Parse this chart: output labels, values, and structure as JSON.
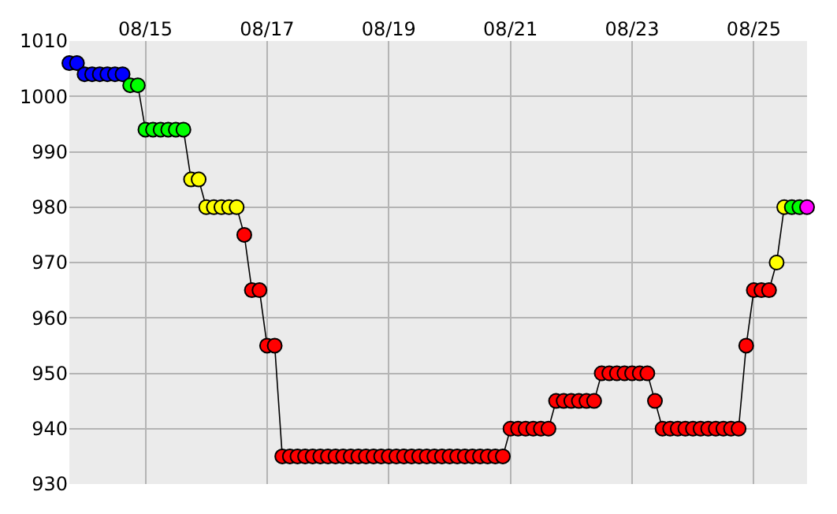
{
  "chart_data": {
    "type": "line",
    "x": [
      "--08-13T18:00",
      "--08-13T21:00",
      "--08-14T00:00",
      "--08-14T03:00",
      "--08-14T06:00",
      "--08-14T09:00",
      "--08-14T12:00",
      "--08-14T15:00",
      "--08-14T18:00",
      "--08-14T21:00",
      "--08-15T00:00",
      "--08-15T03:00",
      "--08-15T06:00",
      "--08-15T09:00",
      "--08-15T12:00",
      "--08-15T15:00",
      "--08-15T18:00",
      "--08-15T21:00",
      "--08-16T00:00",
      "--08-16T03:00",
      "--08-16T06:00",
      "--08-16T09:00",
      "--08-16T12:00",
      "--08-16T15:00",
      "--08-16T18:00",
      "--08-16T21:00",
      "--08-17T00:00",
      "--08-17T03:00",
      "--08-17T06:00",
      "--08-17T09:00",
      "--08-17T12:00",
      "--08-17T15:00",
      "--08-17T18:00",
      "--08-17T21:00",
      "--08-18T00:00",
      "--08-18T03:00",
      "--08-18T06:00",
      "--08-18T09:00",
      "--08-18T12:00",
      "--08-18T15:00",
      "--08-18T18:00",
      "--08-18T21:00",
      "--08-19T00:00",
      "--08-19T03:00",
      "--08-19T06:00",
      "--08-19T09:00",
      "--08-19T12:00",
      "--08-19T15:00",
      "--08-19T18:00",
      "--08-19T21:00",
      "--08-20T00:00",
      "--08-20T03:00",
      "--08-20T06:00",
      "--08-20T09:00",
      "--08-20T12:00",
      "--08-20T15:00",
      "--08-20T18:00",
      "--08-20T21:00",
      "--08-21T00:00",
      "--08-21T03:00",
      "--08-21T06:00",
      "--08-21T09:00",
      "--08-21T12:00",
      "--08-21T15:00",
      "--08-21T18:00",
      "--08-21T21:00",
      "--08-22T00:00",
      "--08-22T03:00",
      "--08-22T06:00",
      "--08-22T09:00",
      "--08-22T12:00",
      "--08-22T15:00",
      "--08-22T18:00",
      "--08-22T21:00",
      "--08-23T00:00",
      "--08-23T03:00",
      "--08-23T06:00",
      "--08-23T09:00",
      "--08-23T12:00",
      "--08-23T15:00",
      "--08-23T18:00",
      "--08-23T21:00",
      "--08-24T00:00",
      "--08-24T03:00",
      "--08-24T06:00",
      "--08-24T09:00",
      "--08-24T12:00",
      "--08-24T15:00",
      "--08-24T18:00",
      "--08-24T21:00",
      "--08-25T00:00",
      "--08-25T03:00",
      "--08-25T06:00",
      "--08-25T09:00",
      "--08-25T12:00",
      "--08-25T15:00",
      "--08-25T18:00",
      "--08-25T21:00"
    ],
    "series": [
      {
        "color": "#000000",
        "values": [
          1006,
          1006,
          1004,
          1004,
          1004,
          1004,
          1004,
          1004,
          1002,
          1002,
          994,
          994,
          994,
          994,
          994,
          994,
          985,
          985,
          980,
          980,
          980,
          980,
          980,
          975,
          965,
          965,
          955,
          955,
          935,
          935,
          935,
          935,
          935,
          935,
          935,
          935,
          935,
          935,
          935,
          935,
          935,
          935,
          935,
          935,
          935,
          935,
          935,
          935,
          935,
          935,
          935,
          935,
          935,
          935,
          935,
          935,
          935,
          935,
          940,
          940,
          940,
          940,
          940,
          940,
          945,
          945,
          945,
          945,
          945,
          945,
          950,
          950,
          950,
          950,
          950,
          950,
          950,
          945,
          940,
          940,
          940,
          940,
          940,
          940,
          940,
          940,
          940,
          940,
          940,
          955,
          965,
          965,
          965,
          970,
          980,
          980,
          980,
          980
        ],
        "colors": [
          "#0000ff",
          "#0000ff",
          "#0000ff",
          "#0000ff",
          "#0000ff",
          "#0000ff",
          "#0000ff",
          "#0000ff",
          "#00ff00",
          "#00ff00",
          "#00ff00",
          "#00ff00",
          "#00ff00",
          "#00ff00",
          "#00ff00",
          "#00ff00",
          "#ffff00",
          "#ffff00",
          "#ffff00",
          "#ffff00",
          "#ffff00",
          "#ffff00",
          "#ffff00",
          "#ff0000",
          "#ff0000",
          "#ff0000",
          "#ff0000",
          "#ff0000",
          "#ff0000",
          "#ff0000",
          "#ff0000",
          "#ff0000",
          "#ff0000",
          "#ff0000",
          "#ff0000",
          "#ff0000",
          "#ff0000",
          "#ff0000",
          "#ff0000",
          "#ff0000",
          "#ff0000",
          "#ff0000",
          "#ff0000",
          "#ff0000",
          "#ff0000",
          "#ff0000",
          "#ff0000",
          "#ff0000",
          "#ff0000",
          "#ff0000",
          "#ff0000",
          "#ff0000",
          "#ff0000",
          "#ff0000",
          "#ff0000",
          "#ff0000",
          "#ff0000",
          "#ff0000",
          "#ff0000",
          "#ff0000",
          "#ff0000",
          "#ff0000",
          "#ff0000",
          "#ff0000",
          "#ff0000",
          "#ff0000",
          "#ff0000",
          "#ff0000",
          "#ff0000",
          "#ff0000",
          "#ff0000",
          "#ff0000",
          "#ff0000",
          "#ff0000",
          "#ff0000",
          "#ff0000",
          "#ff0000",
          "#ff0000",
          "#ff0000",
          "#ff0000",
          "#ff0000",
          "#ff0000",
          "#ff0000",
          "#ff0000",
          "#ff0000",
          "#ff0000",
          "#ff0000",
          "#ff0000",
          "#ff0000",
          "#ff0000",
          "#ff0000",
          "#ff0000",
          "#ff0000",
          "#ffff00",
          "#ffff00",
          "#00ff00",
          "#00ff00",
          "#ff00ff"
        ]
      }
    ],
    "xlim": [
      "--08-13T18:00",
      "--08-25T21:00"
    ],
    "xticks": [
      {
        "value": "--08-15",
        "label": "08/15"
      },
      {
        "value": "--08-17",
        "label": "08/17"
      },
      {
        "value": "--08-19",
        "label": "08/19"
      },
      {
        "value": "--08-21",
        "label": "08/21"
      },
      {
        "value": "--08-23",
        "label": "08/23"
      },
      {
        "value": "--08-25",
        "label": "08/25"
      }
    ],
    "ylim": [
      930,
      1010
    ],
    "yticks": [
      930,
      940,
      950,
      960,
      970,
      980,
      990,
      1000,
      1010
    ],
    "grid": true,
    "marker": "circle",
    "line_style": "solid"
  }
}
